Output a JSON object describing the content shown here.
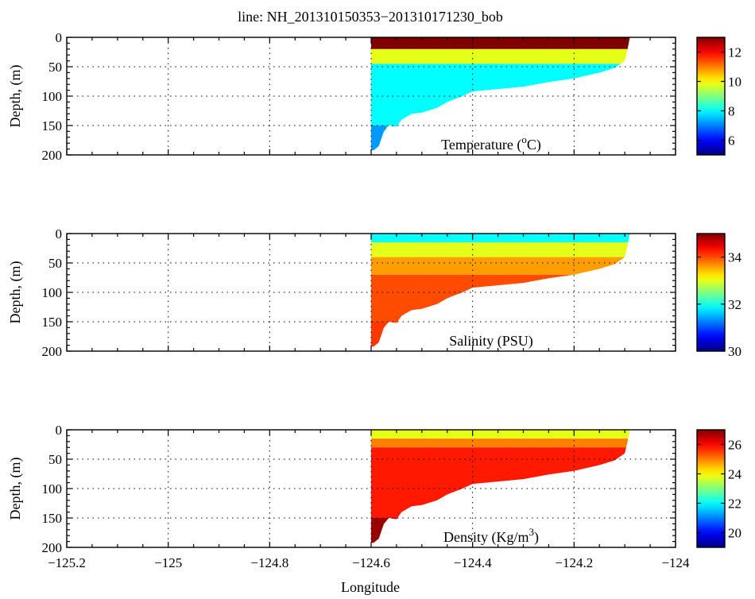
{
  "chart_data": {
    "type": "heatmap",
    "title": "line: NH_201310150353−201310171230_bob",
    "xlabel": "Longitude",
    "xlim": [
      -125.2,
      -124.0
    ],
    "xticks": [
      -125.2,
      -125.0,
      -124.8,
      -124.6,
      -124.4,
      -124.2,
      -124.0
    ],
    "xtick_labels": [
      "−125.2",
      "−125",
      "−124.8",
      "−124.6",
      "−124.4",
      "−124.2",
      "−124"
    ],
    "grid": true,
    "section": {
      "lon_start": -124.6,
      "lon_end": -124.09,
      "bottom_profile": {
        "lon": [
          -124.595,
          -124.585,
          -124.575,
          -124.565,
          -124.55,
          -124.54,
          -124.52,
          -124.5,
          -124.47,
          -124.45,
          -124.42,
          -124.4,
          -124.35,
          -124.3,
          -124.25,
          -124.2,
          -124.15,
          -124.12,
          -124.1,
          -124.095
        ],
        "depth": [
          192,
          185,
          160,
          150,
          152,
          140,
          130,
          128,
          120,
          110,
          100,
          92,
          88,
          84,
          76,
          70,
          60,
          52,
          40,
          22
        ]
      }
    },
    "panels": [
      {
        "name": "temperature",
        "annotation_base": "Temperature (",
        "annotation_sup": "o",
        "annotation_tail": "C)",
        "ylabel": "Depth, (m)",
        "ylim": [
          0,
          200
        ],
        "yticks": [
          0,
          50,
          100,
          150,
          200
        ],
        "ytick_labels": [
          "0",
          "50",
          "100",
          "150",
          "200"
        ],
        "colorbar": {
          "range": [
            5,
            13
          ],
          "ticks": [
            6,
            8,
            10,
            12
          ],
          "tick_labels": [
            "6",
            "8",
            "10",
            "12"
          ]
        },
        "layers": [
          {
            "top_depth": 0,
            "bottom_depth": 20,
            "value": 13
          },
          {
            "top_depth": 20,
            "bottom_depth": 45,
            "value": 9.8
          },
          {
            "top_depth": 45,
            "bottom_depth": 200,
            "value": 8.0
          }
        ],
        "deep_tip_value": 7.2
      },
      {
        "name": "salinity",
        "annotation_base": "Salinity (PSU)",
        "annotation_sup": "",
        "annotation_tail": "",
        "ylabel": "Depth, (m)",
        "ylim": [
          0,
          200
        ],
        "yticks": [
          0,
          50,
          100,
          150,
          200
        ],
        "ytick_labels": [
          "0",
          "50",
          "100",
          "150",
          "200"
        ],
        "colorbar": {
          "range": [
            30,
            35
          ],
          "ticks": [
            30,
            32,
            34
          ],
          "tick_labels": [
            "30",
            "32",
            "34"
          ]
        },
        "layers": [
          {
            "top_depth": 0,
            "bottom_depth": 15,
            "value": 31.9
          },
          {
            "top_depth": 15,
            "bottom_depth": 40,
            "value": 33.0
          },
          {
            "top_depth": 40,
            "bottom_depth": 70,
            "value": 33.6
          },
          {
            "top_depth": 70,
            "bottom_depth": 200,
            "value": 34.0
          }
        ],
        "deep_tip_value": 34.1
      },
      {
        "name": "density",
        "annotation_base": "Density (Kg/m",
        "annotation_sup": "3",
        "annotation_tail": ")",
        "ylabel": "Depth, (m)",
        "ylim": [
          0,
          200
        ],
        "yticks": [
          0,
          50,
          100,
          150,
          200
        ],
        "ytick_labels": [
          "0",
          "50",
          "100",
          "150",
          "200"
        ],
        "colorbar": {
          "range": [
            19,
            27
          ],
          "ticks": [
            20,
            22,
            24,
            26
          ],
          "tick_labels": [
            "20",
            "22",
            "24",
            "26"
          ]
        },
        "layers": [
          {
            "top_depth": 0,
            "bottom_depth": 15,
            "value": 23.8
          },
          {
            "top_depth": 15,
            "bottom_depth": 30,
            "value": 25.0
          },
          {
            "top_depth": 30,
            "bottom_depth": 150,
            "value": 25.8
          },
          {
            "top_depth": 150,
            "bottom_depth": 200,
            "value": 26.6
          }
        ],
        "deep_tip_value": 26.8
      }
    ]
  }
}
